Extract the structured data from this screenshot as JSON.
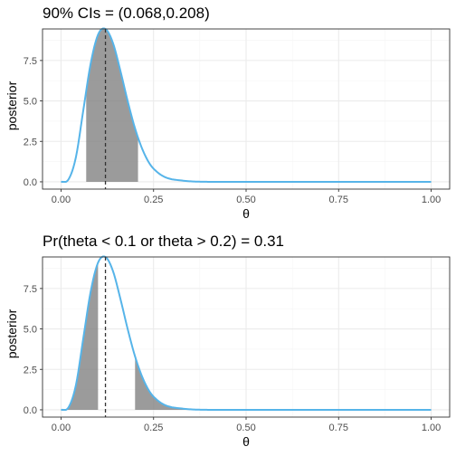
{
  "colors": {
    "curve": "#56B4E9",
    "shade": "#7f7f7f",
    "grid_major": "#ebebeb",
    "grid_minor": "#f5f5f5",
    "border": "#333333",
    "mean_line": "#333333"
  },
  "chart_data": [
    {
      "type": "area",
      "title": "90% CIs = (0.068,0.208)",
      "xlabel": "θ",
      "ylabel": "posterior",
      "xlim": [
        0,
        1
      ],
      "ylim": [
        -0.45,
        9.45
      ],
      "x_ticks": [
        0,
        0.25,
        0.5,
        0.75,
        1
      ],
      "x_tick_labels": [
        "0.00",
        "0.25",
        "0.50",
        "0.75",
        "1.00"
      ],
      "y_ticks": [
        0,
        2.5,
        5,
        7.5
      ],
      "y_tick_labels": [
        "0.0",
        "2.5",
        "5.0",
        "7.5"
      ],
      "grid": true,
      "series": [
        {
          "x": [
            0,
            0.02,
            0.04,
            0.06,
            0.08,
            0.1,
            0.12,
            0.14,
            0.16,
            0.18,
            0.2,
            0.22,
            0.24,
            0.26,
            0.28,
            0.3,
            0.35,
            0.4,
            0.5,
            0.75,
            1
          ],
          "values": [
            0,
            0.14,
            1.5,
            4.4,
            7.3,
            9.1,
            9.45,
            8.6,
            6.9,
            5.0,
            3.3,
            2.0,
            1.1,
            0.6,
            0.3,
            0.15,
            0.03,
            0,
            0,
            0,
            0
          ]
        }
      ],
      "shaded_regions": [
        [
          0.068,
          0.208
        ]
      ],
      "vline": 0.12
    },
    {
      "type": "area",
      "title": "Pr(theta < 0.1 or theta > 0.2) = 0.31",
      "xlabel": "θ",
      "ylabel": "posterior",
      "xlim": [
        0,
        1
      ],
      "ylim": [
        -0.45,
        9.45
      ],
      "x_ticks": [
        0,
        0.25,
        0.5,
        0.75,
        1
      ],
      "x_tick_labels": [
        "0.00",
        "0.25",
        "0.50",
        "0.75",
        "1.00"
      ],
      "y_ticks": [
        0,
        2.5,
        5,
        7.5
      ],
      "y_tick_labels": [
        "0.0",
        "2.5",
        "5.0",
        "7.5"
      ],
      "grid": true,
      "series": [
        {
          "x": [
            0,
            0.02,
            0.04,
            0.06,
            0.08,
            0.1,
            0.12,
            0.14,
            0.16,
            0.18,
            0.2,
            0.22,
            0.24,
            0.26,
            0.28,
            0.3,
            0.35,
            0.4,
            0.5,
            0.75,
            1
          ],
          "values": [
            0,
            0.14,
            1.5,
            4.4,
            7.3,
            9.1,
            9.45,
            8.6,
            6.9,
            5.0,
            3.3,
            2.0,
            1.1,
            0.6,
            0.3,
            0.15,
            0.03,
            0,
            0,
            0,
            0
          ]
        }
      ],
      "shaded_regions": [
        [
          0,
          0.1
        ],
        [
          0.2,
          1
        ]
      ],
      "vline": 0.12
    }
  ]
}
